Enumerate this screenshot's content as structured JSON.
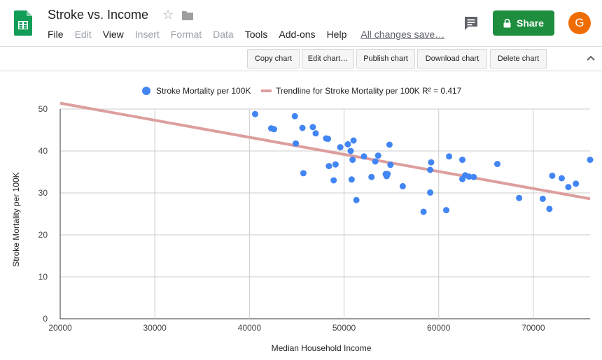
{
  "document": {
    "title": "Stroke vs. Income"
  },
  "menu": [
    "File",
    "Edit",
    "View",
    "Insert",
    "Format",
    "Data",
    "Tools",
    "Add-ons",
    "Help"
  ],
  "menu_disabled": [
    "Edit",
    "Insert",
    "Format",
    "Data"
  ],
  "save_status": "All changes save…",
  "share_label": "Share",
  "avatar_letter": "G",
  "chart_toolbar": {
    "copy": "Copy chart",
    "edit": "Edit chart…",
    "publish": "Publish chart",
    "download": "Download chart",
    "delete": "Delete chart"
  },
  "colors": {
    "share": "#1e8e3e",
    "avatar": "#ef6c00",
    "points": "#4285f4",
    "trendline": "#dd9e9e",
    "sheets_logo": "#0f9d58"
  },
  "icons": [
    "sheets-logo",
    "star-icon",
    "folder-icon",
    "comment-icon",
    "lock-icon",
    "chevron-up-icon"
  ],
  "chart_data": {
    "type": "scatter",
    "title": "",
    "xlabel": "Median Household Income",
    "ylabel": "Stroke Mortality per 100K",
    "xlim": [
      20000,
      76000
    ],
    "ylim": [
      0,
      50
    ],
    "xticks": [
      "20000",
      "30000",
      "40000",
      "50000",
      "60000",
      "70000"
    ],
    "yticks": [
      "0",
      "10",
      "20",
      "30",
      "40",
      "50"
    ],
    "grid": true,
    "legend_position": "top",
    "series": [
      {
        "name": "Stroke Mortality per 100K",
        "points": [
          [
            40600,
            48.8
          ],
          [
            42300,
            45.4
          ],
          [
            42600,
            45.2
          ],
          [
            44800,
            48.3
          ],
          [
            44900,
            41.8
          ],
          [
            45600,
            45.5
          ],
          [
            45700,
            34.7
          ],
          [
            46700,
            45.7
          ],
          [
            47000,
            44.2
          ],
          [
            48100,
            43.0
          ],
          [
            48300,
            42.9
          ],
          [
            48400,
            36.4
          ],
          [
            48900,
            33.0
          ],
          [
            49100,
            36.8
          ],
          [
            49600,
            40.9
          ],
          [
            50400,
            41.6
          ],
          [
            50700,
            40.0
          ],
          [
            50800,
            33.2
          ],
          [
            50900,
            37.9
          ],
          [
            51000,
            42.5
          ],
          [
            51300,
            28.3
          ],
          [
            52100,
            38.7
          ],
          [
            52900,
            33.8
          ],
          [
            53300,
            37.5
          ],
          [
            53600,
            38.9
          ],
          [
            54400,
            34.5
          ],
          [
            54500,
            34.0
          ],
          [
            54600,
            34.5
          ],
          [
            54800,
            41.5
          ],
          [
            54900,
            36.7
          ],
          [
            56200,
            31.6
          ],
          [
            58400,
            25.5
          ],
          [
            59100,
            35.5
          ],
          [
            59100,
            30.1
          ],
          [
            59200,
            37.3
          ],
          [
            60800,
            25.9
          ],
          [
            61100,
            38.7
          ],
          [
            62500,
            37.9
          ],
          [
            62500,
            33.3
          ],
          [
            62800,
            34.2
          ],
          [
            63200,
            33.9
          ],
          [
            63700,
            33.8
          ],
          [
            66200,
            36.9
          ],
          [
            68500,
            28.8
          ],
          [
            71000,
            28.6
          ],
          [
            71700,
            26.2
          ],
          [
            72000,
            34.1
          ],
          [
            73000,
            33.5
          ],
          [
            73700,
            31.4
          ],
          [
            74500,
            32.2
          ],
          [
            76000,
            37.9
          ]
        ]
      }
    ],
    "trendline": {
      "name": "Trendline for Stroke Mortality per 100K R² = 0.417",
      "x": [
        20000,
        76000
      ],
      "y": [
        51.4,
        28.6
      ]
    }
  }
}
